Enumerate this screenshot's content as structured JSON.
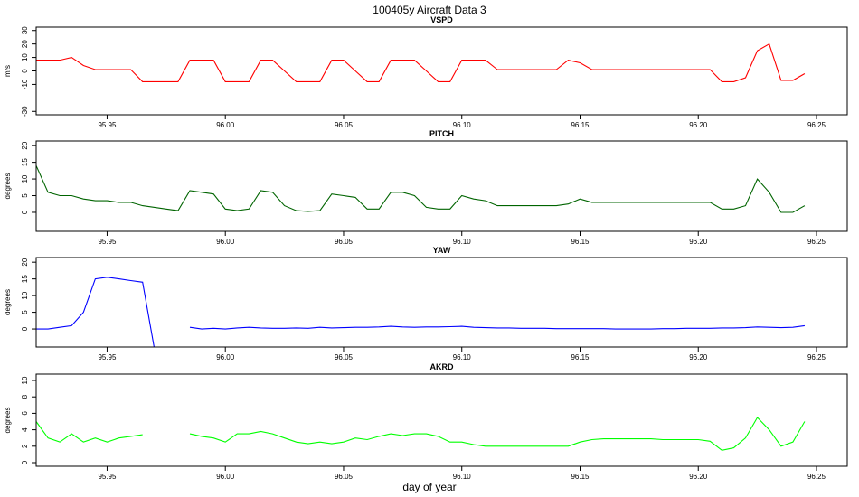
{
  "figure": {
    "title": "100405y   Aircraft Data 3",
    "xlabel": "day of year"
  },
  "chart_data": [
    {
      "type": "line",
      "title": "VSPD",
      "ylabel": "m/s",
      "color": "#ff0000",
      "xlim": [
        95.92,
        96.263
      ],
      "xticks": [
        95.95,
        {
          "value": 96,
          "label": "96.00"
        },
        96.05,
        {
          "value": 96.1,
          "label": "96.10"
        },
        96.15,
        {
          "value": 96.2,
          "label": "96.20"
        },
        96.25
      ],
      "ylim": [
        -32.5,
        32.5
      ],
      "yticks": [
        -30,
        -10,
        0,
        10,
        20,
        30
      ],
      "x": [
        95.92,
        95.925,
        95.93,
        95.935,
        95.94,
        95.945,
        95.95,
        95.955,
        95.96,
        95.965,
        95.97,
        95.975,
        95.98,
        95.985,
        95.99,
        95.995,
        96.0,
        96.005,
        96.01,
        96.015,
        96.02,
        96.025,
        96.03,
        96.035,
        96.04,
        96.045,
        96.05,
        96.055,
        96.06,
        96.065,
        96.07,
        96.075,
        96.08,
        96.085,
        96.09,
        96.095,
        96.1,
        96.105,
        96.11,
        96.115,
        96.12,
        96.125,
        96.13,
        96.135,
        96.14,
        96.145,
        96.15,
        96.155,
        96.16,
        96.165,
        96.17,
        96.175,
        96.18,
        96.185,
        96.19,
        96.195,
        96.2,
        96.205,
        96.21,
        96.215,
        96.22,
        96.225,
        96.23,
        96.235,
        96.24,
        96.245
      ],
      "values": [
        8,
        8,
        8,
        10,
        4,
        1,
        1,
        1,
        1,
        -8,
        -8,
        -8,
        -8,
        8,
        8,
        8,
        -8,
        -8,
        -8,
        8,
        8,
        0,
        -8,
        -8,
        -8,
        8,
        8,
        0,
        -8,
        -8,
        8,
        8,
        8,
        0,
        -8,
        -8,
        8,
        8,
        8,
        1,
        1,
        1,
        1,
        1,
        1,
        8,
        6,
        1,
        1,
        1,
        1,
        1,
        1,
        1,
        1,
        1,
        1,
        1,
        -8,
        -8,
        -5,
        15,
        20,
        -7,
        -7,
        -2
      ]
    },
    {
      "type": "line",
      "title": "PITCH",
      "ylabel": "degrees",
      "color": "#006400",
      "xlim": [
        95.92,
        96.263
      ],
      "xticks": [
        95.95,
        {
          "value": 96,
          "label": "96.00"
        },
        96.05,
        {
          "value": 96.1,
          "label": "96.10"
        },
        96.15,
        {
          "value": 96.2,
          "label": "96.20"
        },
        96.25
      ],
      "ylim": [
        -5.7,
        21.4
      ],
      "yticks": [
        0,
        5,
        10,
        15,
        20
      ],
      "x": [
        95.92,
        95.925,
        95.93,
        95.935,
        95.94,
        95.945,
        95.95,
        95.955,
        95.96,
        95.965,
        95.97,
        95.975,
        95.98,
        95.985,
        95.99,
        95.995,
        96.0,
        96.005,
        96.01,
        96.015,
        96.02,
        96.025,
        96.03,
        96.035,
        96.04,
        96.045,
        96.05,
        96.055,
        96.06,
        96.065,
        96.07,
        96.075,
        96.08,
        96.085,
        96.09,
        96.095,
        96.1,
        96.105,
        96.11,
        96.115,
        96.12,
        96.125,
        96.13,
        96.135,
        96.14,
        96.145,
        96.15,
        96.155,
        96.16,
        96.165,
        96.17,
        96.175,
        96.18,
        96.185,
        96.19,
        96.195,
        96.2,
        96.205,
        96.21,
        96.215,
        96.22,
        96.225,
        96.23,
        96.235,
        96.24,
        96.245
      ],
      "values": [
        14,
        6,
        5,
        5,
        4,
        3.5,
        3.5,
        3,
        3,
        2,
        1.5,
        1,
        0.5,
        6.5,
        6,
        5.5,
        1,
        0.5,
        1,
        6.5,
        6,
        2,
        0.5,
        0.3,
        0.5,
        5.5,
        5,
        4.5,
        1,
        1,
        6,
        6,
        5,
        1.5,
        1,
        1,
        5,
        4,
        3.5,
        2,
        2,
        2,
        2,
        2,
        2,
        2.5,
        4,
        3,
        3,
        3,
        3,
        3,
        3,
        3,
        3,
        3,
        3,
        3,
        1,
        1,
        2,
        10,
        6,
        0,
        0,
        2
      ]
    },
    {
      "type": "line",
      "title": "YAW",
      "ylabel": "degrees",
      "color": "#0000ff",
      "xlim": [
        95.92,
        96.263
      ],
      "xticks": [
        95.95,
        {
          "value": 96,
          "label": "96.00"
        },
        96.05,
        {
          "value": 96.1,
          "label": "96.10"
        },
        96.15,
        {
          "value": 96.2,
          "label": "96.20"
        },
        96.25
      ],
      "ylim": [
        -5.4,
        21.4
      ],
      "yticks": [
        0,
        5,
        10,
        15,
        20
      ],
      "x": [
        95.92,
        95.925,
        95.93,
        95.935,
        95.94,
        95.945,
        95.95,
        95.955,
        95.96,
        95.965,
        95.97,
        95.975,
        95.98,
        95.985,
        95.99,
        95.995,
        96.0,
        96.005,
        96.01,
        96.015,
        96.02,
        96.025,
        96.03,
        96.035,
        96.04,
        96.045,
        96.05,
        96.055,
        96.06,
        96.065,
        96.07,
        96.075,
        96.08,
        96.085,
        96.09,
        96.095,
        96.1,
        96.105,
        96.11,
        96.115,
        96.12,
        96.125,
        96.13,
        96.135,
        96.14,
        96.145,
        96.15,
        96.155,
        96.16,
        96.165,
        96.17,
        96.175,
        96.18,
        96.185,
        96.19,
        96.195,
        96.2,
        96.205,
        96.21,
        96.215,
        96.22,
        96.225,
        96.23,
        96.235,
        96.24,
        96.245
      ],
      "values": [
        0,
        0,
        0.5,
        1,
        5,
        15,
        15.5,
        15,
        14.5,
        14,
        -6,
        null,
        null,
        0.5,
        0,
        0.2,
        0,
        0.3,
        0.5,
        0.3,
        0.2,
        0.2,
        0.3,
        0.2,
        0.5,
        0.3,
        0.4,
        0.5,
        0.5,
        0.6,
        0.8,
        0.6,
        0.5,
        0.6,
        0.6,
        0.7,
        0.8,
        0.5,
        0.4,
        0.3,
        0.3,
        0.2,
        0.2,
        0.2,
        0.1,
        0.1,
        0.1,
        0.1,
        0.1,
        0,
        0,
        0,
        0,
        0.1,
        0.1,
        0.2,
        0.2,
        0.2,
        0.3,
        0.3,
        0.4,
        0.6,
        0.5,
        0.4,
        0.5,
        1
      ]
    },
    {
      "type": "line",
      "title": "AKRD",
      "ylabel": "degrees",
      "color": "#00ff00",
      "xlim": [
        95.92,
        96.263
      ],
      "xticks": [
        95.95,
        {
          "value": 96,
          "label": "96.00"
        },
        96.05,
        {
          "value": 96.1,
          "label": "96.10"
        },
        96.15,
        {
          "value": 96.2,
          "label": "96.20"
        },
        96.25
      ],
      "ylim": [
        -0.44,
        10.77
      ],
      "yticks": [
        0,
        2,
        4,
        6,
        8,
        10
      ],
      "x": [
        95.92,
        95.925,
        95.93,
        95.935,
        95.94,
        95.945,
        95.95,
        95.955,
        95.96,
        95.965,
        95.97,
        95.975,
        95.98,
        95.985,
        95.99,
        95.995,
        96.0,
        96.005,
        96.01,
        96.015,
        96.02,
        96.025,
        96.03,
        96.035,
        96.04,
        96.045,
        96.05,
        96.055,
        96.06,
        96.065,
        96.07,
        96.075,
        96.08,
        96.085,
        96.09,
        96.095,
        96.1,
        96.105,
        96.11,
        96.115,
        96.12,
        96.125,
        96.13,
        96.135,
        96.14,
        96.145,
        96.15,
        96.155,
        96.16,
        96.165,
        96.17,
        96.175,
        96.18,
        96.185,
        96.19,
        96.195,
        96.2,
        96.205,
        96.21,
        96.215,
        96.22,
        96.225,
        96.23,
        96.235,
        96.24,
        96.245
      ],
      "values": [
        5,
        3,
        2.5,
        3.5,
        2.5,
        3,
        2.5,
        3,
        3.2,
        3.4,
        null,
        null,
        null,
        3.5,
        3.2,
        3,
        2.5,
        3.5,
        3.5,
        3.8,
        3.5,
        3,
        2.5,
        2.3,
        2.5,
        2.3,
        2.5,
        3,
        2.8,
        3.2,
        3.5,
        3.3,
        3.5,
        3.5,
        3.2,
        2.5,
        2.5,
        2.2,
        2,
        2,
        2,
        2,
        2,
        2,
        2,
        2,
        2.5,
        2.8,
        2.9,
        2.9,
        2.9,
        2.9,
        2.9,
        2.8,
        2.8,
        2.8,
        2.8,
        2.6,
        1.5,
        1.8,
        3,
        5.5,
        4,
        2,
        2.5,
        5
      ]
    }
  ]
}
